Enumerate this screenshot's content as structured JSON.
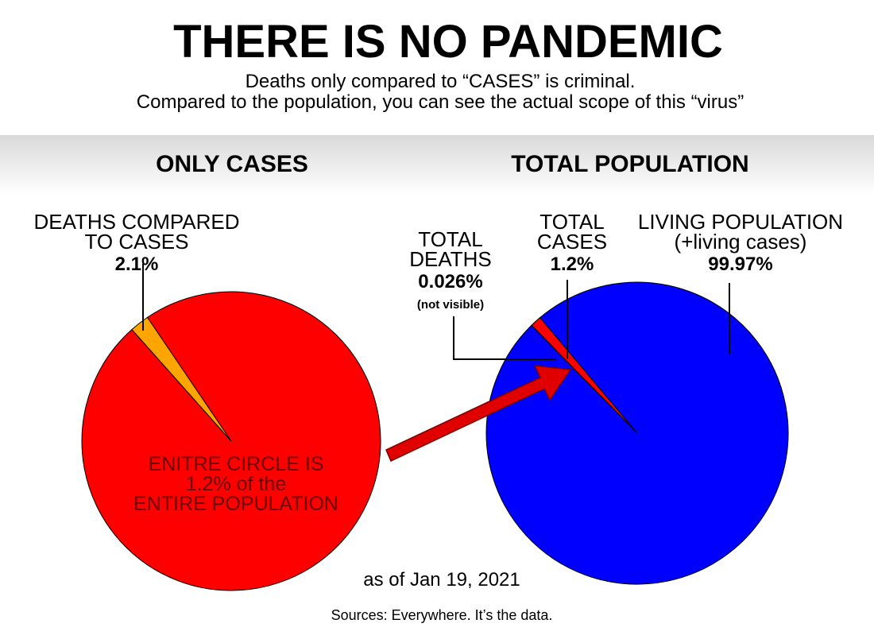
{
  "title": "THERE IS NO PANDEMIC",
  "subtitle": [
    "Deaths only compared to “CASES” is criminal.",
    "Compared to the population, you can see the actual scope of this “virus”"
  ],
  "chart_data": [
    {
      "type": "pie",
      "title": "ONLY CASES",
      "categories": [
        [
          "DEATHS COMPARED",
          "TO CASES"
        ],
        null
      ],
      "values": [
        2.1,
        97.9
      ],
      "value_labels": [
        "2.1%",
        null
      ],
      "colors": [
        "#ffa500",
        "#ff0000"
      ]
    },
    {
      "type": "pie",
      "title": "TOTAL POPULATION",
      "categories": [
        [
          "TOTAL",
          "DEATHS"
        ],
        [
          "TOTAL",
          "CASES"
        ],
        [
          "LIVING POPULATION",
          "(+living cases)"
        ]
      ],
      "values": [
        0.026,
        1.2,
        99.97
      ],
      "value_labels": [
        "0.026%",
        "1.2%",
        "99.97%"
      ],
      "colors": [
        "#ff0000",
        "#ff0000",
        "#0000ff"
      ],
      "notes": [
        "(not visible)",
        null,
        null
      ]
    }
  ],
  "annotation": [
    "ENITRE CIRCLE IS",
    "1.2% of the",
    "ENTIRE POPULATION"
  ],
  "date": "as of Jan 19, 2021",
  "source": "Sources: Everywhere. It’s the data."
}
